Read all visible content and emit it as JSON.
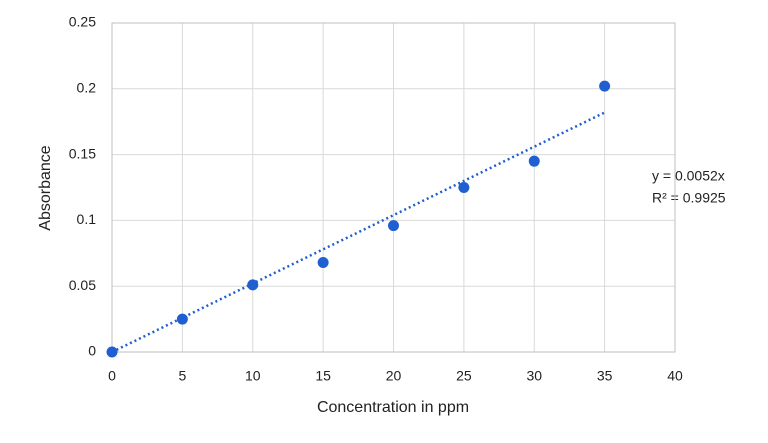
{
  "chart_data": {
    "type": "scatter",
    "x_label": "Concentration in ppm",
    "y_label": "Absorbance",
    "x": [
      0,
      5,
      10,
      15,
      20,
      25,
      30,
      35
    ],
    "series": [
      {
        "color": "#1f5fd1",
        "values": [
          0,
          0.025,
          0.051,
          0.068,
          0.096,
          0.125,
          0.145,
          0.202
        ]
      }
    ],
    "xlim": [
      0,
      40
    ],
    "xticks": [
      0,
      5,
      10,
      15,
      20,
      25,
      30,
      35,
      40
    ],
    "ylim": [
      0,
      0.25
    ],
    "yticks": [
      0,
      0.05,
      0.1,
      0.15,
      0.2,
      0.25
    ],
    "grid": true,
    "trendline": {
      "slope": 0.0052,
      "equation": "y = 0.0052x",
      "r_squared": "R² = 0.9925"
    }
  }
}
